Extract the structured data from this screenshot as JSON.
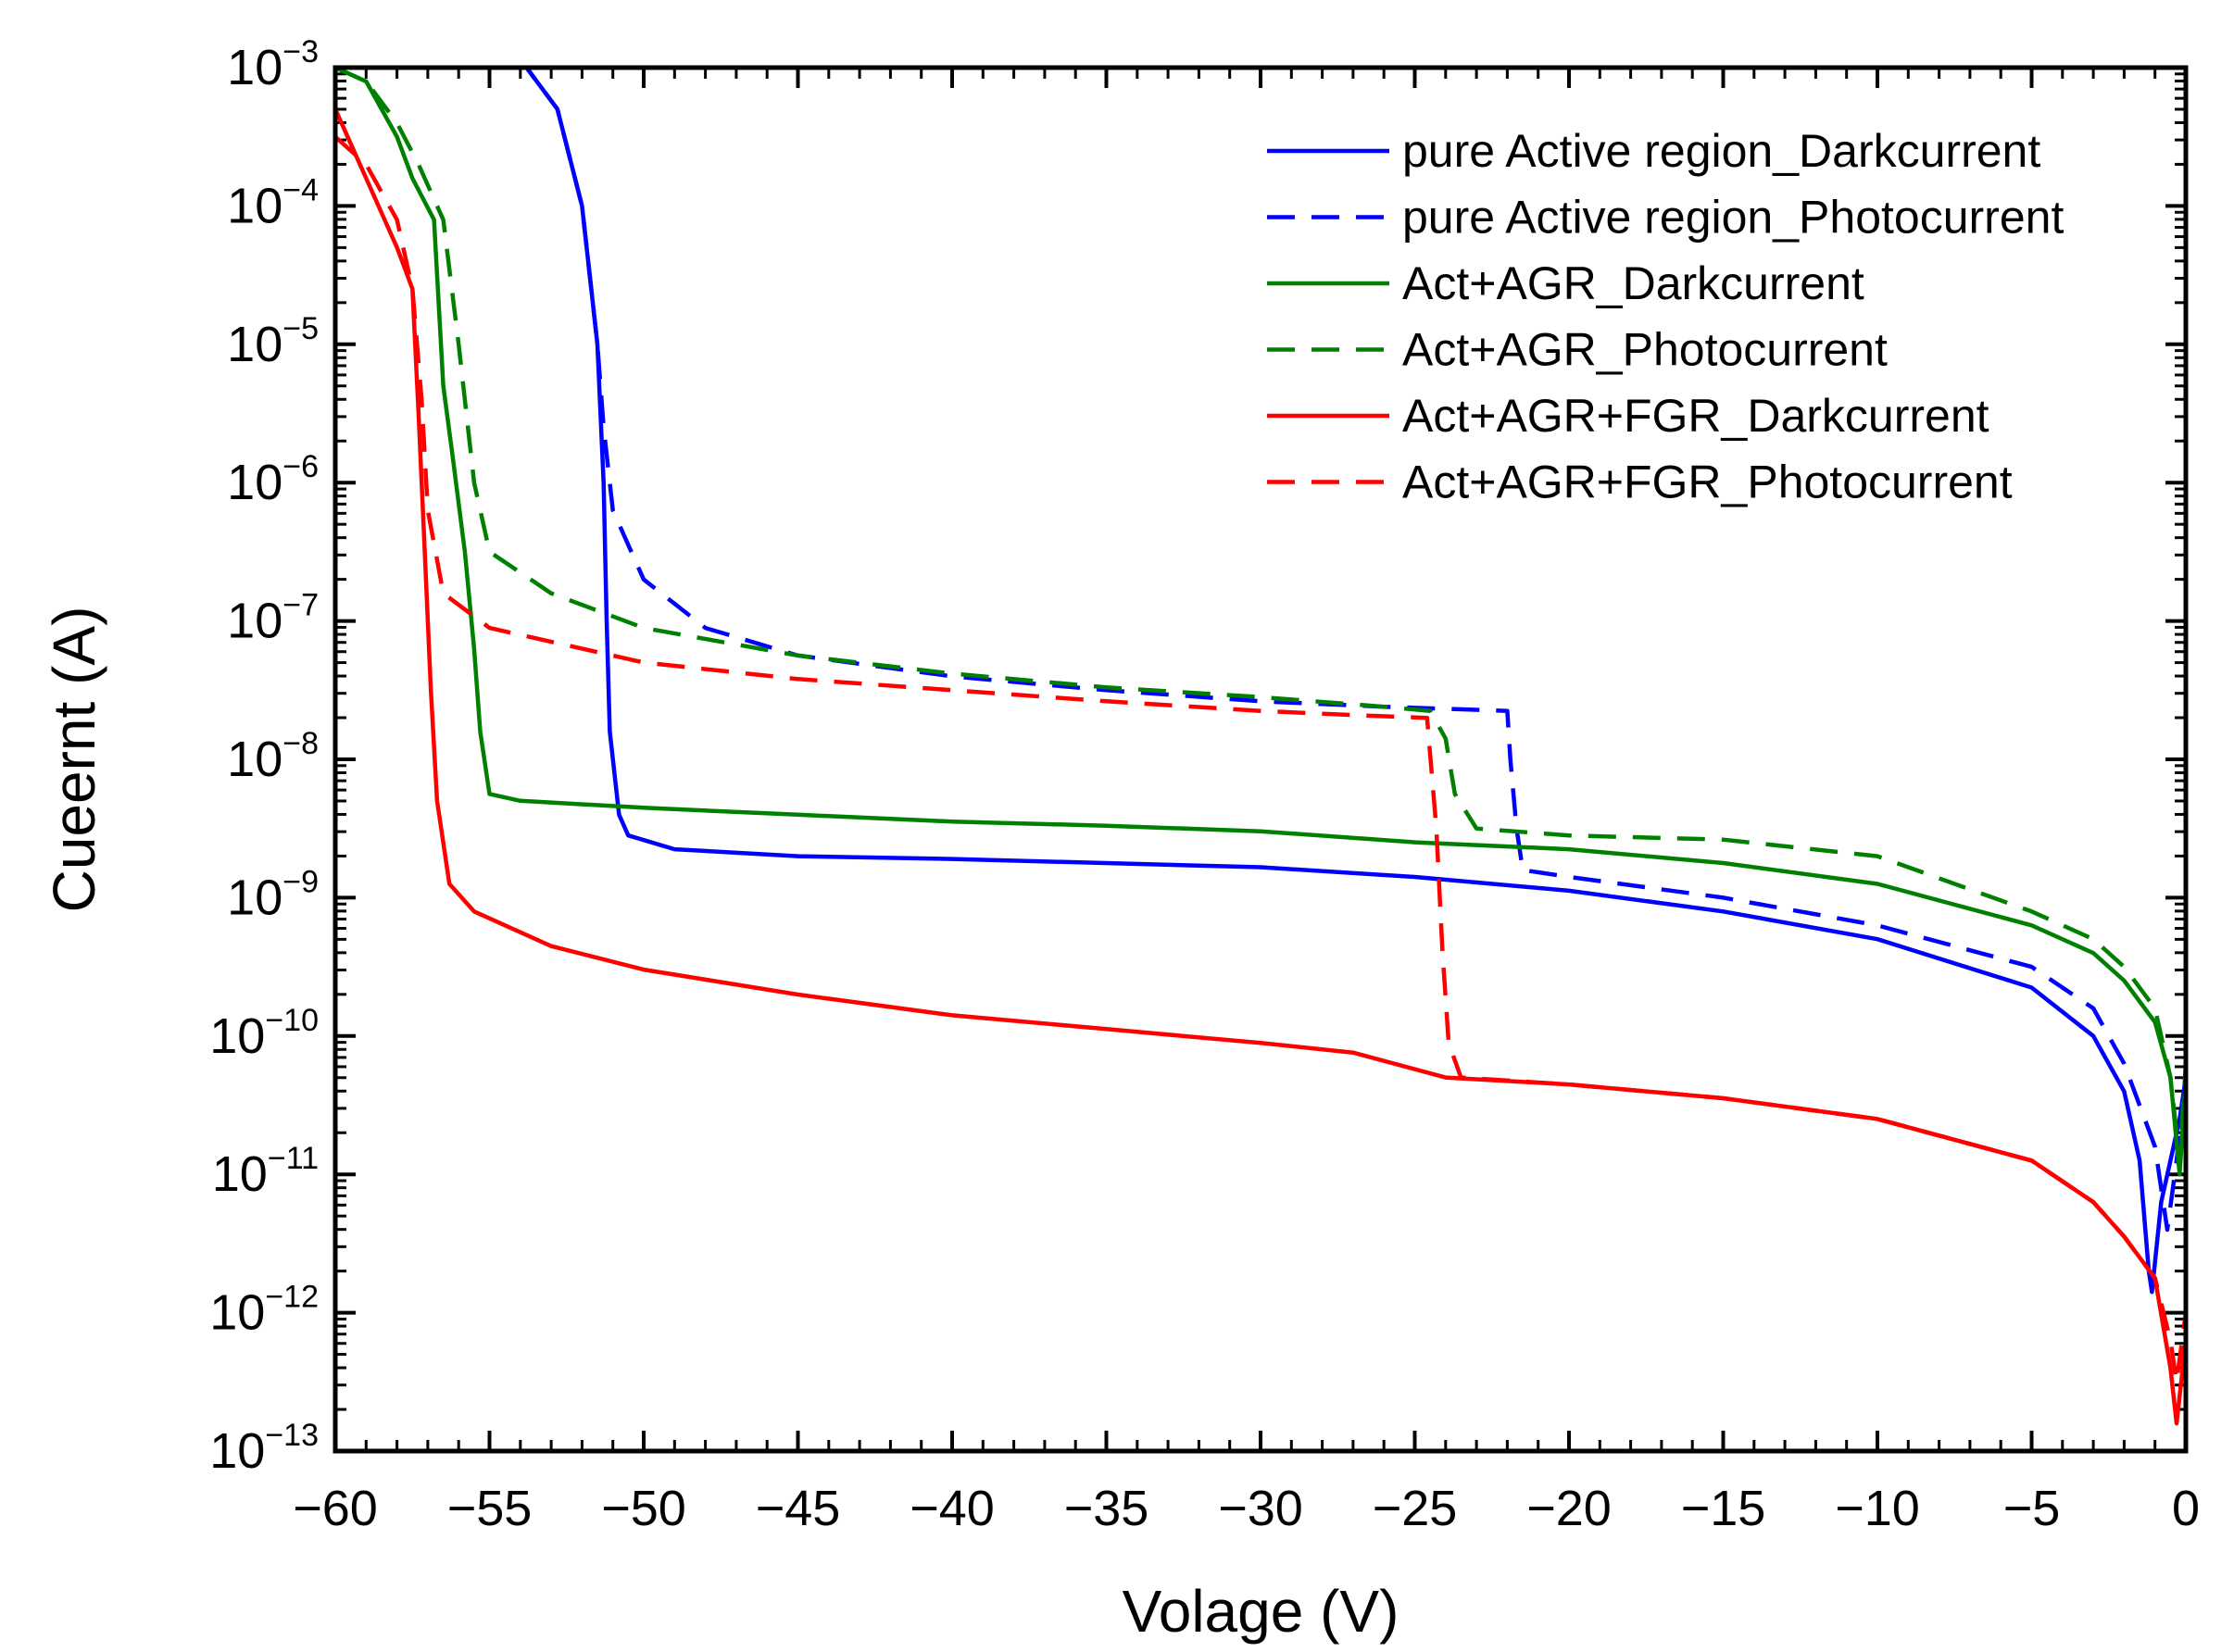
{
  "chart_data": {
    "type": "line",
    "title": "",
    "xlabel": "Volage (V)",
    "ylabel": "Cueernt (A)",
    "xlim": [
      -60,
      0
    ],
    "ylim_log10": [
      -13,
      -3
    ],
    "yscale": "log",
    "x_ticks": [
      -60,
      -55,
      -50,
      -45,
      -40,
      -35,
      -30,
      -25,
      -20,
      -15,
      -10,
      -5,
      0
    ],
    "x_tick_labels": [
      "−60",
      "−55",
      "−50",
      "−45",
      "−40",
      "−35",
      "−30",
      "−25",
      "−20",
      "−15",
      "−10",
      "−5",
      "0"
    ],
    "y_ticks_log10": [
      -3,
      -4,
      -5,
      -6,
      -7,
      -8,
      -9,
      -10,
      -11,
      -12,
      -13
    ],
    "y_tick_base": "10",
    "y_tick_exponents": [
      "−3",
      "−4",
      "−5",
      "−6",
      "−7",
      "−8",
      "−9",
      "−10",
      "−11",
      "−12",
      "−13"
    ],
    "legend_position": "top-right",
    "series": [
      {
        "name": "pure Active region_Darkcurrent",
        "color": "#0000ff",
        "dash": "solid",
        "points": [
          [
            -60,
            -3
          ],
          [
            -53.8,
            -3
          ],
          [
            -52.8,
            -3.3
          ],
          [
            -52,
            -4
          ],
          [
            -51.5,
            -5
          ],
          [
            -51.3,
            -6
          ],
          [
            -51.2,
            -7
          ],
          [
            -51.1,
            -7.8
          ],
          [
            -50.8,
            -8.4
          ],
          [
            -50.5,
            -8.55
          ],
          [
            -49,
            -8.65
          ],
          [
            -45,
            -8.7
          ],
          [
            -40,
            -8.72
          ],
          [
            -30,
            -8.78
          ],
          [
            -25,
            -8.85
          ],
          [
            -20,
            -8.95
          ],
          [
            -15,
            -9.1
          ],
          [
            -10,
            -9.3
          ],
          [
            -5,
            -9.65
          ],
          [
            -3,
            -10
          ],
          [
            -2,
            -10.4
          ],
          [
            -1.5,
            -10.9
          ],
          [
            -1.2,
            -11.7
          ],
          [
            -1.1,
            -11.85
          ],
          [
            -0.8,
            -11.2
          ],
          [
            -0.5,
            -10.9
          ],
          [
            -0.2,
            -10.6
          ],
          [
            0,
            -10.3
          ]
        ]
      },
      {
        "name": "pure Active region_Photocurrent",
        "color": "#0000ff",
        "dash": "dashed",
        "points": [
          [
            -60,
            -3
          ],
          [
            -53.8,
            -3
          ],
          [
            -52.8,
            -3.3
          ],
          [
            -52,
            -4
          ],
          [
            -51.5,
            -5
          ],
          [
            -51.3,
            -5.6
          ],
          [
            -51,
            -6.2
          ],
          [
            -50,
            -6.7
          ],
          [
            -48,
            -7.05
          ],
          [
            -45,
            -7.25
          ],
          [
            -40,
            -7.4
          ],
          [
            -35,
            -7.5
          ],
          [
            -30,
            -7.58
          ],
          [
            -26,
            -7.62
          ],
          [
            -22,
            -7.65
          ],
          [
            -21.9,
            -8.0
          ],
          [
            -21.7,
            -8.5
          ],
          [
            -21.5,
            -8.8
          ],
          [
            -20,
            -8.85
          ],
          [
            -15,
            -9.0
          ],
          [
            -10,
            -9.2
          ],
          [
            -5,
            -9.5
          ],
          [
            -3,
            -9.8
          ],
          [
            -2,
            -10.2
          ],
          [
            -1,
            -10.8
          ],
          [
            -0.6,
            -11.4
          ],
          [
            -0.3,
            -10.9
          ],
          [
            0,
            -10.3
          ]
        ]
      },
      {
        "name": "Act+AGR_Darkcurrent",
        "color": "#008000",
        "dash": "solid",
        "points": [
          [
            -60,
            -3
          ],
          [
            -59,
            -3.1
          ],
          [
            -58,
            -3.5
          ],
          [
            -57.5,
            -3.8
          ],
          [
            -56.8,
            -4.1
          ],
          [
            -56.5,
            -5.3
          ],
          [
            -56.2,
            -5.8
          ],
          [
            -55.8,
            -6.5
          ],
          [
            -55.5,
            -7.2
          ],
          [
            -55.3,
            -7.8
          ],
          [
            -55,
            -8.25
          ],
          [
            -54,
            -8.3
          ],
          [
            -50,
            -8.35
          ],
          [
            -45,
            -8.4
          ],
          [
            -40,
            -8.45
          ],
          [
            -35,
            -8.48
          ],
          [
            -30,
            -8.52
          ],
          [
            -25,
            -8.6
          ],
          [
            -20,
            -8.65
          ],
          [
            -15,
            -8.75
          ],
          [
            -10,
            -8.9
          ],
          [
            -5,
            -9.2
          ],
          [
            -3,
            -9.4
          ],
          [
            -2,
            -9.6
          ],
          [
            -1,
            -9.9
          ],
          [
            -0.5,
            -10.3
          ],
          [
            -0.2,
            -11
          ],
          [
            0,
            -10.3
          ]
        ]
      },
      {
        "name": "Act+AGR_Photocurrent",
        "color": "#008000",
        "dash": "dashed",
        "points": [
          [
            -60,
            -3
          ],
          [
            -59,
            -3.1
          ],
          [
            -58,
            -3.4
          ],
          [
            -57.3,
            -3.7
          ],
          [
            -56.5,
            -4.1
          ],
          [
            -56,
            -5
          ],
          [
            -55.5,
            -6
          ],
          [
            -55,
            -6.5
          ],
          [
            -53,
            -6.8
          ],
          [
            -50,
            -7.05
          ],
          [
            -45,
            -7.25
          ],
          [
            -40,
            -7.38
          ],
          [
            -35,
            -7.48
          ],
          [
            -30,
            -7.55
          ],
          [
            -26,
            -7.62
          ],
          [
            -24.5,
            -7.65
          ],
          [
            -24,
            -7.85
          ],
          [
            -23.7,
            -8.25
          ],
          [
            -23,
            -8.5
          ],
          [
            -20,
            -8.55
          ],
          [
            -15,
            -8.58
          ],
          [
            -10,
            -8.7
          ],
          [
            -5,
            -9.1
          ],
          [
            -3,
            -9.3
          ],
          [
            -2,
            -9.5
          ],
          [
            -1,
            -9.8
          ],
          [
            -0.5,
            -10.3
          ],
          [
            -0.2,
            -10.9
          ],
          [
            0,
            -10.2
          ]
        ]
      },
      {
        "name": "Act+AGR+FGR_Darkcurrent",
        "color": "#ff0000",
        "dash": "solid",
        "points": [
          [
            -60,
            -3.3
          ],
          [
            -59,
            -3.8
          ],
          [
            -58,
            -4.3
          ],
          [
            -57.5,
            -4.6
          ],
          [
            -57.3,
            -5.5
          ],
          [
            -57.1,
            -6.5
          ],
          [
            -56.9,
            -7.5
          ],
          [
            -56.7,
            -8.3
          ],
          [
            -56.3,
            -8.9
          ],
          [
            -55.5,
            -9.1
          ],
          [
            -53,
            -9.35
          ],
          [
            -50,
            -9.52
          ],
          [
            -45,
            -9.7
          ],
          [
            -40,
            -9.85
          ],
          [
            -35,
            -9.95
          ],
          [
            -30,
            -10.05
          ],
          [
            -27,
            -10.12
          ],
          [
            -24,
            -10.3
          ],
          [
            -20,
            -10.35
          ],
          [
            -15,
            -10.45
          ],
          [
            -10,
            -10.6
          ],
          [
            -5,
            -10.9
          ],
          [
            -3,
            -11.2
          ],
          [
            -2,
            -11.45
          ],
          [
            -1,
            -11.75
          ],
          [
            -0.5,
            -12.4
          ],
          [
            -0.3,
            -12.8
          ],
          [
            0,
            -12.2
          ]
        ]
      },
      {
        "name": "Act+AGR+FGR_Photocurrent",
        "color": "#ff0000",
        "dash": "dashed",
        "points": [
          [
            -60,
            -3.5
          ],
          [
            -59,
            -3.7
          ],
          [
            -58,
            -4.1
          ],
          [
            -57.5,
            -4.6
          ],
          [
            -57.2,
            -5.4
          ],
          [
            -57,
            -6.2
          ],
          [
            -56.5,
            -6.8
          ],
          [
            -55,
            -7.05
          ],
          [
            -50,
            -7.3
          ],
          [
            -45,
            -7.42
          ],
          [
            -40,
            -7.5
          ],
          [
            -35,
            -7.58
          ],
          [
            -30,
            -7.65
          ],
          [
            -27,
            -7.68
          ],
          [
            -24.6,
            -7.7
          ],
          [
            -24.3,
            -8.5
          ],
          [
            -24.1,
            -9.4
          ],
          [
            -23.9,
            -10.05
          ],
          [
            -23.5,
            -10.3
          ],
          [
            -20,
            -10.35
          ],
          [
            -15,
            -10.45
          ],
          [
            -10,
            -10.6
          ],
          [
            -5,
            -10.9
          ],
          [
            -3,
            -11.2
          ],
          [
            -2,
            -11.45
          ],
          [
            -1,
            -11.75
          ],
          [
            -0.5,
            -12.2
          ],
          [
            -0.3,
            -12.5
          ],
          [
            0,
            -12.0
          ]
        ]
      }
    ]
  }
}
